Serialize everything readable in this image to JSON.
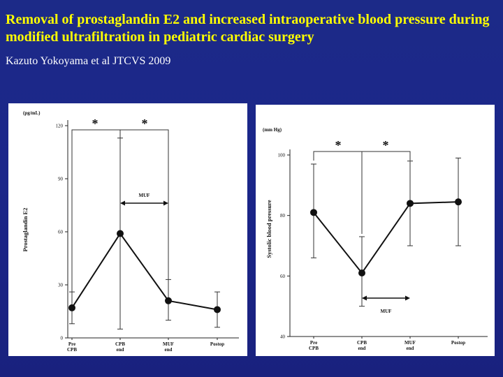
{
  "slide": {
    "title": "Removal of prostaglandin E2 and increased intraoperative blood pressure during modified ultrafiltration in pediatric cardiac surgery",
    "subtitle": "Kazuto Yokoyama et al JTCVS 2009"
  },
  "chart_data": [
    {
      "type": "line",
      "unit_label": "(pg/mL)",
      "ylabel": "Prostaglandin E2",
      "xlabel": "",
      "ylim": [
        0,
        120
      ],
      "yticks": [
        0,
        30,
        60,
        90,
        120
      ],
      "categories": [
        [
          "Pre",
          "CPB"
        ],
        [
          "CPB",
          "end"
        ],
        [
          "MUF",
          "end"
        ],
        [
          "Postop",
          ""
        ]
      ],
      "series": [
        {
          "values": [
            17,
            59,
            21,
            16
          ],
          "error_upper": [
            26,
            113,
            33,
            26
          ],
          "error_lower": [
            8,
            5,
            10,
            6
          ]
        }
      ],
      "muf_label": "MUF",
      "significance_marks": [
        "*",
        "*"
      ],
      "grid": false
    },
    {
      "type": "line",
      "unit_label": "(mm Hg)",
      "ylabel": "Systolic blood pressure",
      "xlabel": "",
      "ylim": [
        40,
        100
      ],
      "yticks": [
        40,
        60,
        80,
        100
      ],
      "categories": [
        [
          "Pre",
          "CPB"
        ],
        [
          "CPB",
          "end"
        ],
        [
          "MUF",
          "end"
        ],
        [
          "Postop",
          ""
        ]
      ],
      "series": [
        {
          "values": [
            81,
            61,
            84,
            84.5
          ],
          "error_upper": [
            97,
            73,
            98,
            99
          ],
          "error_lower": [
            66,
            50,
            70,
            70
          ]
        }
      ],
      "muf_label": "MUF",
      "significance_marks": [
        "*",
        "*"
      ],
      "grid": false
    }
  ]
}
